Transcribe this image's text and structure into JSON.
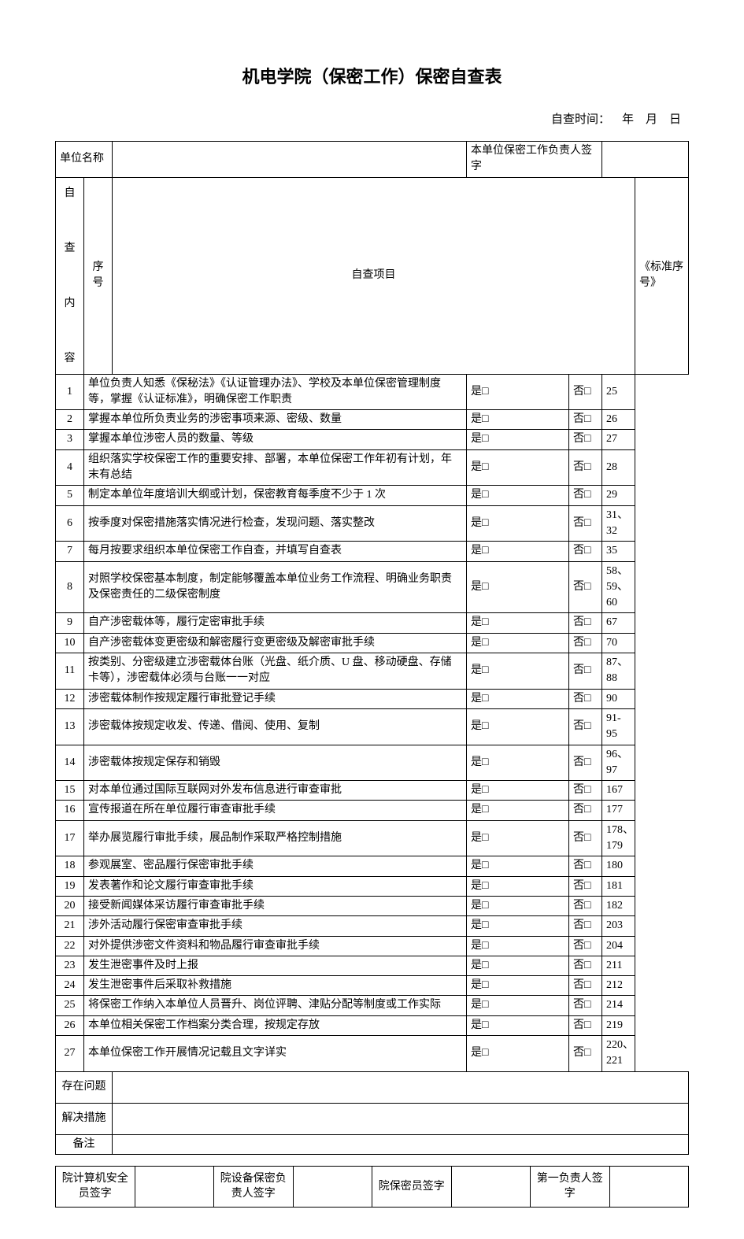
{
  "title": "机电学院（保密工作）保密自查表",
  "subline": "自查时间： 年 月 日",
  "hdr": {
    "unit_label": "单位名称",
    "signer_label": "本单位保密工作负责人签字",
    "seq": "序号",
    "item": "自查项目",
    "std": "《标准序号》",
    "side": "自\n\n查\n\n内\n\n容"
  },
  "yes": "是□",
  "no": "否□",
  "rows": [
    {
      "n": "1",
      "t": "单位负责人知悉《保秘法》《认证管理办法》、学校及本单位保密管理制度等，掌握《认证标准》，明确保密工作职责",
      "s": "25"
    },
    {
      "n": "2",
      "t": "掌握本单位所负责业务的涉密事项来源、密级、数量",
      "s": "26"
    },
    {
      "n": "3",
      "t": "掌握本单位涉密人员的数量、等级",
      "s": "27"
    },
    {
      "n": "4",
      "t": "组织落实学校保密工作的重要安排、部署，本单位保密工作年初有计划，年末有总结",
      "s": "28"
    },
    {
      "n": "5",
      "t": "制定本单位年度培训大纲或计划，保密教育每季度不少于 1 次",
      "s": "29"
    },
    {
      "n": "6",
      "t": "按季度对保密措施落实情况进行检查，发现问题、落实整改",
      "s": "31、32"
    },
    {
      "n": "7",
      "t": "每月按要求组织本单位保密工作自查，并填写自查表",
      "s": "35"
    },
    {
      "n": "8",
      "t": "对照学校保密基本制度，制定能够覆盖本单位业务工作流程、明确业务职责及保密责任的二级保密制度",
      "s": "58、59、60"
    },
    {
      "n": "9",
      "t": "自产涉密载体等，履行定密审批手续",
      "s": "67"
    },
    {
      "n": "10",
      "t": "自产涉密载体变更密级和解密履行变更密级及解密审批手续",
      "s": "70"
    },
    {
      "n": "11",
      "t": "按类别、分密级建立涉密载体台账（光盘、纸介质、U 盘、移动硬盘、存储卡等），涉密载体必须与台账一一对应",
      "s": "87、88"
    },
    {
      "n": "12",
      "t": "涉密载体制作按规定履行审批登记手续",
      "s": "90"
    },
    {
      "n": "13",
      "t": "涉密载体按规定收发、传递、借阅、使用、复制",
      "s": "91-95"
    },
    {
      "n": "14",
      "t": "涉密载体按规定保存和销毁",
      "s": "96、97"
    },
    {
      "n": "15",
      "t": "对本单位通过国际互联网对外发布信息进行审查审批",
      "s": "167"
    },
    {
      "n": "16",
      "t": "宣传报道在所在单位履行审查审批手续",
      "s": "177"
    },
    {
      "n": "17",
      "t": "举办展览履行审批手续，展品制作采取严格控制措施",
      "s": "178、179"
    },
    {
      "n": "18",
      "t": "参观展室、密品履行保密审批手续",
      "s": "180"
    },
    {
      "n": "19",
      "t": "发表著作和论文履行审查审批手续",
      "s": "181"
    },
    {
      "n": "20",
      "t": "接受新闻媒体采访履行审查审批手续",
      "s": "182"
    },
    {
      "n": "21",
      "t": "涉外活动履行保密审查审批手续",
      "s": "203"
    },
    {
      "n": "22",
      "t": "对外提供涉密文件资料和物品履行审查审批手续",
      "s": "204"
    },
    {
      "n": "23",
      "t": "发生泄密事件及时上报",
      "s": "211"
    },
    {
      "n": "24",
      "t": "发生泄密事件后采取补救措施",
      "s": "212"
    },
    {
      "n": "25",
      "t": "将保密工作纳入本单位人员晋升、岗位评聘、津贴分配等制度或工作实际",
      "s": "214"
    },
    {
      "n": "26",
      "t": "本单位相关保密工作档案分类合理，按规定存放",
      "s": "219"
    },
    {
      "n": "27",
      "t": "本单位保密工作开展情况记载且文字详实",
      "s": "220、221"
    }
  ],
  "tail": {
    "problem": "存在问题",
    "solution": "解决措施",
    "note": "备注"
  },
  "sig": {
    "a": "院计算机安全员签字",
    "b": "院设备保密负责人签字",
    "c": "院保密员签字",
    "d": "第一负责人签字"
  }
}
